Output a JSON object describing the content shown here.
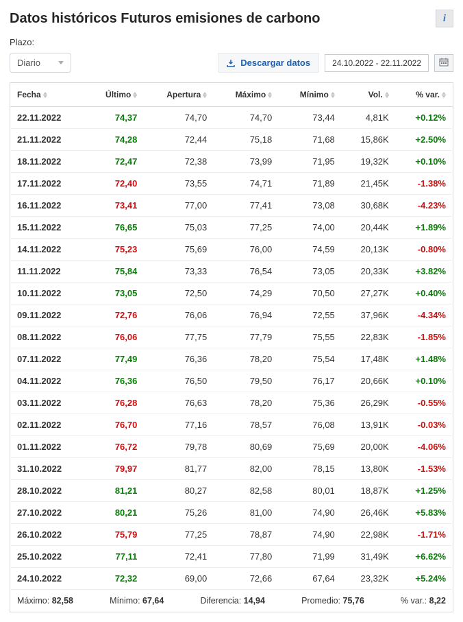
{
  "header": {
    "title": "Datos históricos Futuros emisiones de carbono",
    "info_icon": "i"
  },
  "controls": {
    "plazo_label": "Plazo:",
    "period_selected": "Diario",
    "download_label": "Descargar datos",
    "date_range": "24.10.2022 - 22.11.2022"
  },
  "columns": [
    "Fecha",
    "Último",
    "Apertura",
    "Máximo",
    "Mínimo",
    "Vol.",
    "% var."
  ],
  "colors": {
    "positive": "#067f06",
    "negative": "#cc1010",
    "link": "#1b61b5",
    "border": "#d8dbde",
    "text": "#333333"
  },
  "rows": [
    {
      "fecha": "22.11.2022",
      "ultimo": "74,37",
      "ult_dir": "pos",
      "apertura": "74,70",
      "maximo": "74,70",
      "minimo": "73,44",
      "vol": "4,81K",
      "var": "+0.12%",
      "var_dir": "pos"
    },
    {
      "fecha": "21.11.2022",
      "ultimo": "74,28",
      "ult_dir": "pos",
      "apertura": "72,44",
      "maximo": "75,18",
      "minimo": "71,68",
      "vol": "15,86K",
      "var": "+2.50%",
      "var_dir": "pos"
    },
    {
      "fecha": "18.11.2022",
      "ultimo": "72,47",
      "ult_dir": "pos",
      "apertura": "72,38",
      "maximo": "73,99",
      "minimo": "71,95",
      "vol": "19,32K",
      "var": "+0.10%",
      "var_dir": "pos"
    },
    {
      "fecha": "17.11.2022",
      "ultimo": "72,40",
      "ult_dir": "neg",
      "apertura": "73,55",
      "maximo": "74,71",
      "minimo": "71,89",
      "vol": "21,45K",
      "var": "-1.38%",
      "var_dir": "neg"
    },
    {
      "fecha": "16.11.2022",
      "ultimo": "73,41",
      "ult_dir": "neg",
      "apertura": "77,00",
      "maximo": "77,41",
      "minimo": "73,08",
      "vol": "30,68K",
      "var": "-4.23%",
      "var_dir": "neg"
    },
    {
      "fecha": "15.11.2022",
      "ultimo": "76,65",
      "ult_dir": "pos",
      "apertura": "75,03",
      "maximo": "77,25",
      "minimo": "74,00",
      "vol": "20,44K",
      "var": "+1.89%",
      "var_dir": "pos"
    },
    {
      "fecha": "14.11.2022",
      "ultimo": "75,23",
      "ult_dir": "neg",
      "apertura": "75,69",
      "maximo": "76,00",
      "minimo": "74,59",
      "vol": "20,13K",
      "var": "-0.80%",
      "var_dir": "neg"
    },
    {
      "fecha": "11.11.2022",
      "ultimo": "75,84",
      "ult_dir": "pos",
      "apertura": "73,33",
      "maximo": "76,54",
      "minimo": "73,05",
      "vol": "20,33K",
      "var": "+3.82%",
      "var_dir": "pos"
    },
    {
      "fecha": "10.11.2022",
      "ultimo": "73,05",
      "ult_dir": "pos",
      "apertura": "72,50",
      "maximo": "74,29",
      "minimo": "70,50",
      "vol": "27,27K",
      "var": "+0.40%",
      "var_dir": "pos"
    },
    {
      "fecha": "09.11.2022",
      "ultimo": "72,76",
      "ult_dir": "neg",
      "apertura": "76,06",
      "maximo": "76,94",
      "minimo": "72,55",
      "vol": "37,96K",
      "var": "-4.34%",
      "var_dir": "neg"
    },
    {
      "fecha": "08.11.2022",
      "ultimo": "76,06",
      "ult_dir": "neg",
      "apertura": "77,75",
      "maximo": "77,79",
      "minimo": "75,55",
      "vol": "22,83K",
      "var": "-1.85%",
      "var_dir": "neg"
    },
    {
      "fecha": "07.11.2022",
      "ultimo": "77,49",
      "ult_dir": "pos",
      "apertura": "76,36",
      "maximo": "78,20",
      "minimo": "75,54",
      "vol": "17,48K",
      "var": "+1.48%",
      "var_dir": "pos"
    },
    {
      "fecha": "04.11.2022",
      "ultimo": "76,36",
      "ult_dir": "pos",
      "apertura": "76,50",
      "maximo": "79,50",
      "minimo": "76,17",
      "vol": "20,66K",
      "var": "+0.10%",
      "var_dir": "pos"
    },
    {
      "fecha": "03.11.2022",
      "ultimo": "76,28",
      "ult_dir": "neg",
      "apertura": "76,63",
      "maximo": "78,20",
      "minimo": "75,36",
      "vol": "26,29K",
      "var": "-0.55%",
      "var_dir": "neg"
    },
    {
      "fecha": "02.11.2022",
      "ultimo": "76,70",
      "ult_dir": "neg",
      "apertura": "77,16",
      "maximo": "78,57",
      "minimo": "76,08",
      "vol": "13,91K",
      "var": "-0.03%",
      "var_dir": "neg"
    },
    {
      "fecha": "01.11.2022",
      "ultimo": "76,72",
      "ult_dir": "neg",
      "apertura": "79,78",
      "maximo": "80,69",
      "minimo": "75,69",
      "vol": "20,00K",
      "var": "-4.06%",
      "var_dir": "neg"
    },
    {
      "fecha": "31.10.2022",
      "ultimo": "79,97",
      "ult_dir": "neg",
      "apertura": "81,77",
      "maximo": "82,00",
      "minimo": "78,15",
      "vol": "13,80K",
      "var": "-1.53%",
      "var_dir": "neg"
    },
    {
      "fecha": "28.10.2022",
      "ultimo": "81,21",
      "ult_dir": "pos",
      "apertura": "80,27",
      "maximo": "82,58",
      "minimo": "80,01",
      "vol": "18,87K",
      "var": "+1.25%",
      "var_dir": "pos"
    },
    {
      "fecha": "27.10.2022",
      "ultimo": "80,21",
      "ult_dir": "pos",
      "apertura": "75,26",
      "maximo": "81,00",
      "minimo": "74,90",
      "vol": "26,46K",
      "var": "+5.83%",
      "var_dir": "pos"
    },
    {
      "fecha": "26.10.2022",
      "ultimo": "75,79",
      "ult_dir": "neg",
      "apertura": "77,25",
      "maximo": "78,87",
      "minimo": "74,90",
      "vol": "22,98K",
      "var": "-1.71%",
      "var_dir": "neg"
    },
    {
      "fecha": "25.10.2022",
      "ultimo": "77,11",
      "ult_dir": "pos",
      "apertura": "72,41",
      "maximo": "77,80",
      "minimo": "71,99",
      "vol": "31,49K",
      "var": "+6.62%",
      "var_dir": "pos"
    },
    {
      "fecha": "24.10.2022",
      "ultimo": "72,32",
      "ult_dir": "pos",
      "apertura": "69,00",
      "maximo": "72,66",
      "minimo": "67,64",
      "vol": "23,32K",
      "var": "+5.24%",
      "var_dir": "pos"
    }
  ],
  "summary": {
    "max_label": "Máximo:",
    "max_val": "82,58",
    "min_label": "Mínimo:",
    "min_val": "67,64",
    "diff_label": "Diferencia:",
    "diff_val": "14,94",
    "avg_label": "Promedio:",
    "avg_val": "75,76",
    "var_label": "% var.:",
    "var_val": "8,22"
  }
}
